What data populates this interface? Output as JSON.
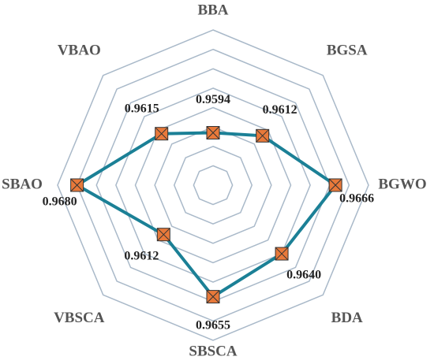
{
  "chart_data": {
    "type": "radar",
    "categories": [
      "BBA",
      "BGSA",
      "BGWO",
      "BDA",
      "SBSCA",
      "VBSCA",
      "SBAO",
      "VBAO"
    ],
    "values": [
      0.9594,
      0.9612,
      0.9666,
      0.964,
      0.9655,
      0.9612,
      0.968,
      0.9615
    ],
    "value_labels": [
      "0.9594",
      "0.9612",
      "0.9666",
      "0.9640",
      "0.9655",
      "0.9612",
      "0.9680",
      "0.9615"
    ],
    "color": "#1b8096",
    "marker_color": "#e8793a",
    "grid_color": "#a9b9c9",
    "ylim": [
      0.954,
      0.97
    ],
    "yticks": [
      0.956,
      0.958,
      0.96,
      0.962,
      0.964,
      0.966,
      0.968,
      0.97
    ],
    "grid": true
  }
}
